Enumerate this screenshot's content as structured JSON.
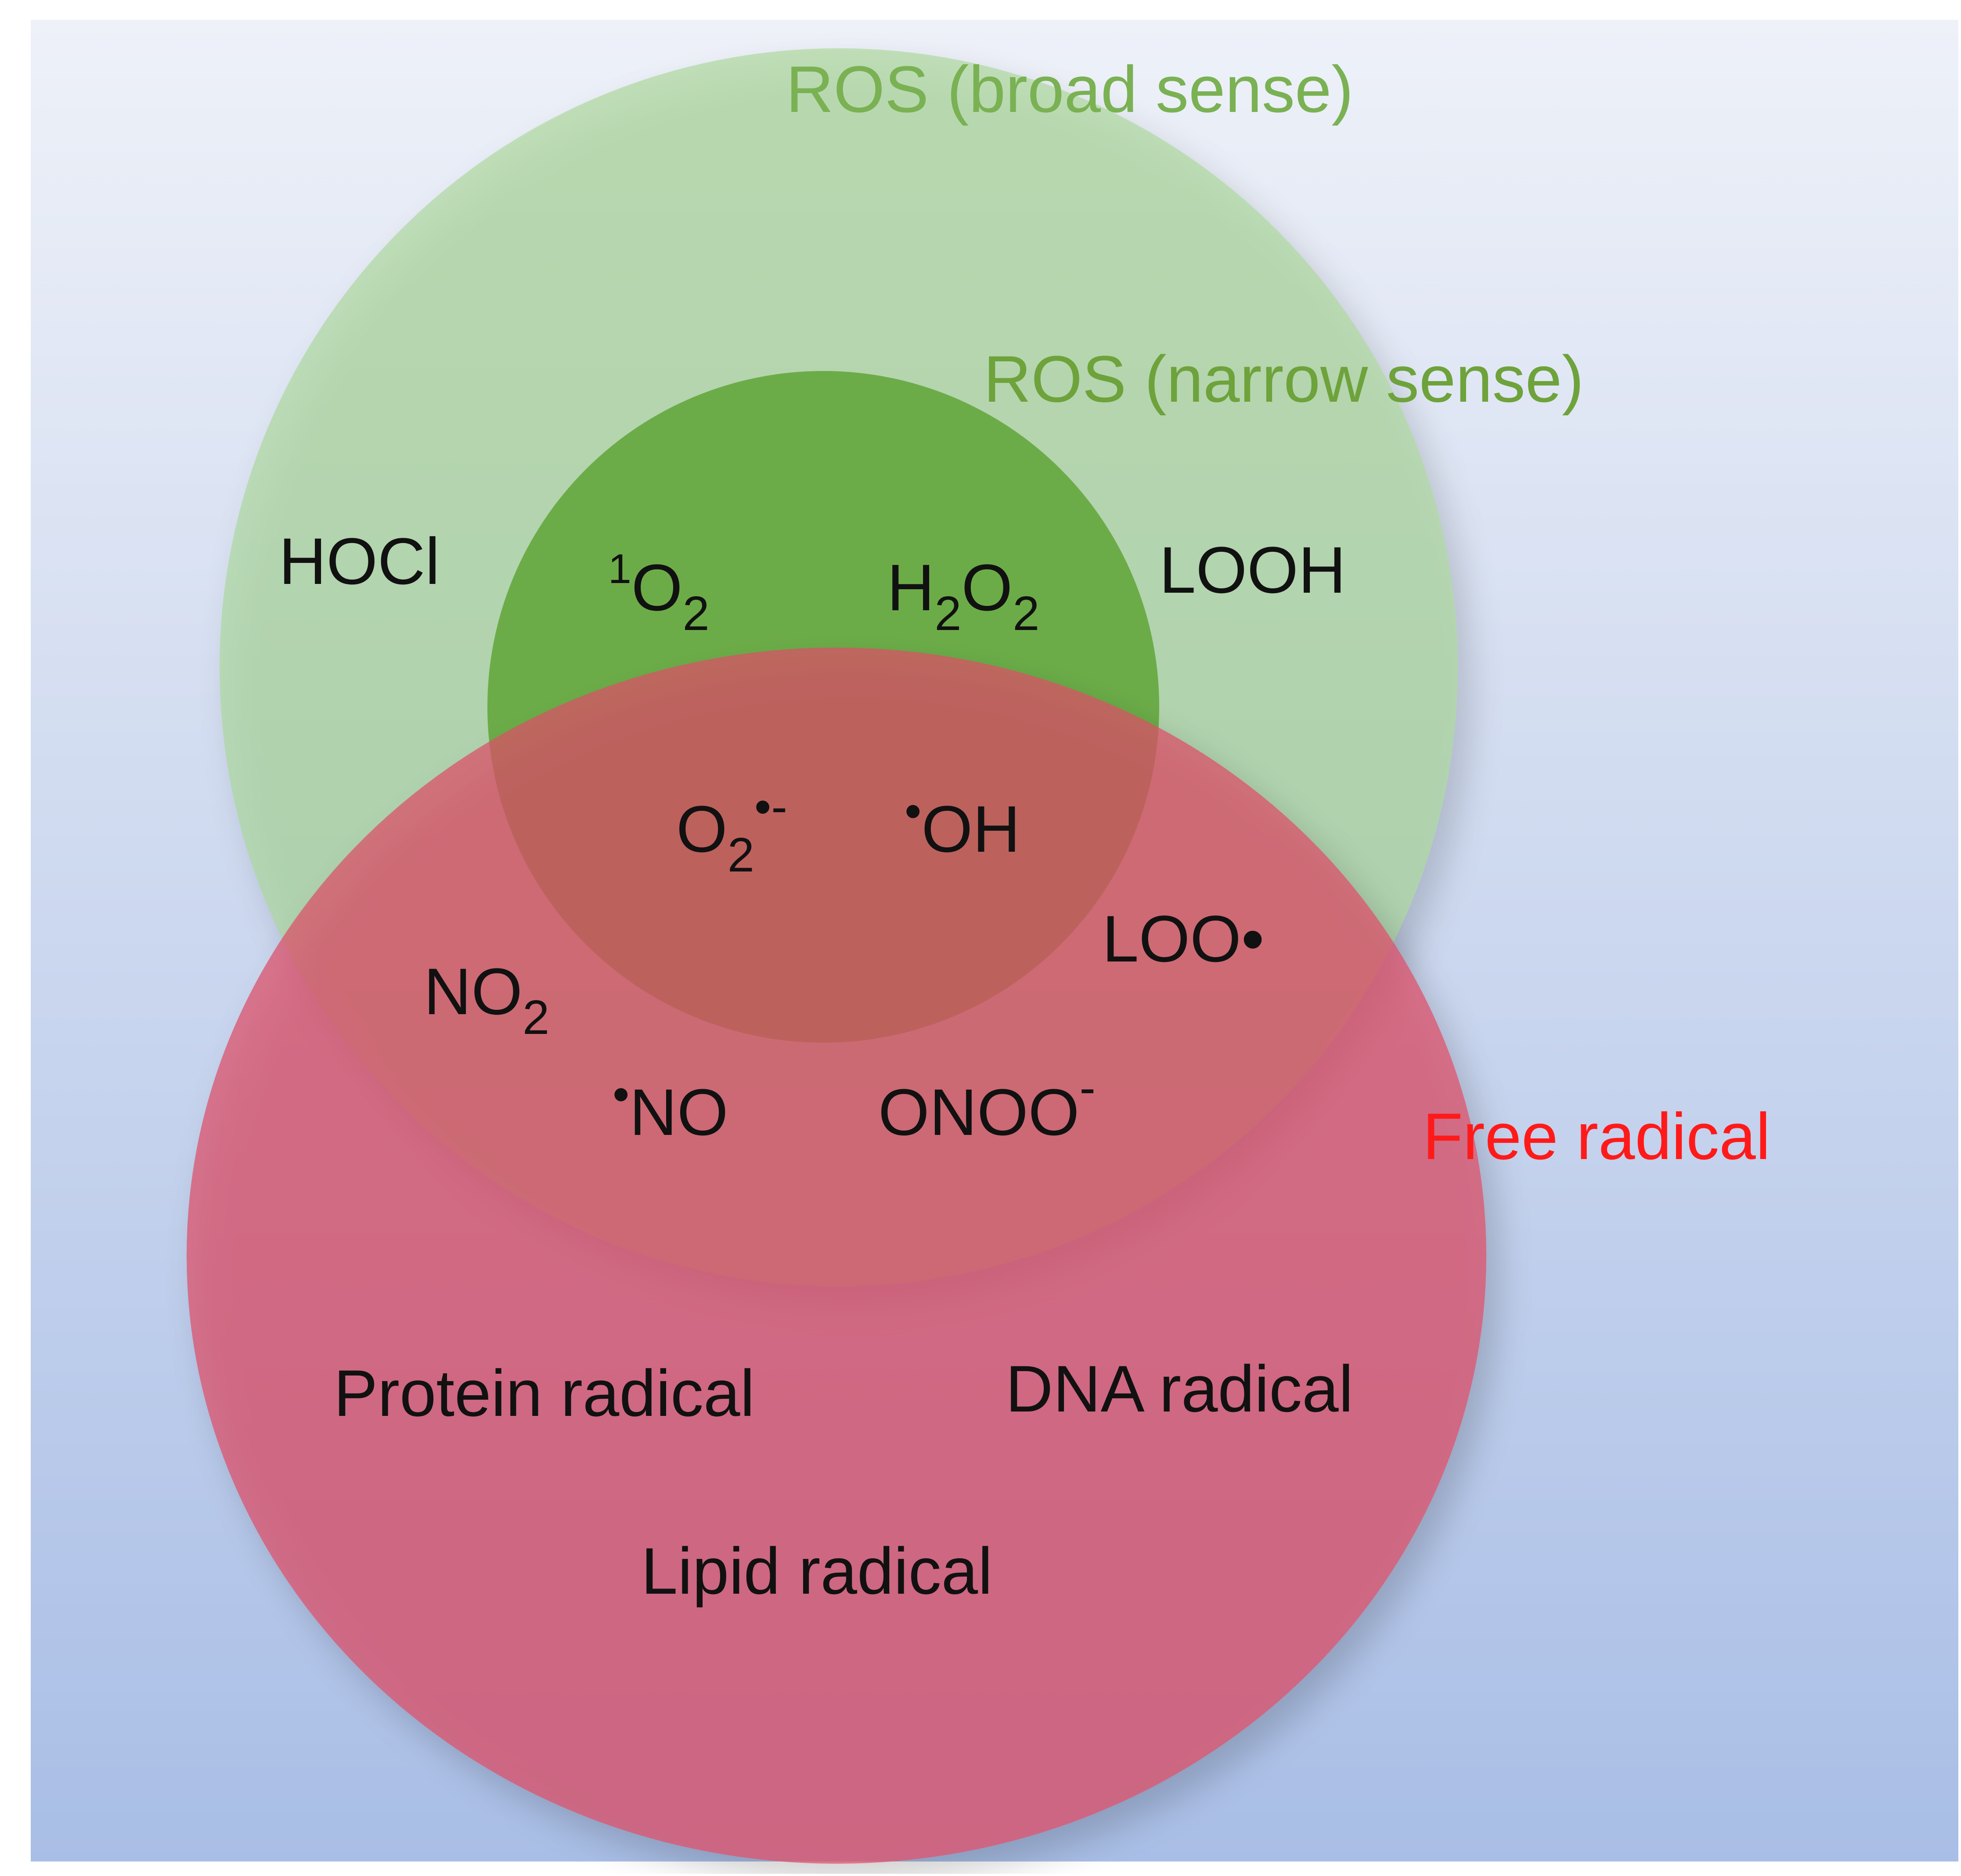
{
  "colors": {
    "bg_top": "#eef1f8",
    "bg_bottom": "#a9bee6",
    "broad_fill": "#a8d596",
    "narrow_fill": "#5fa536",
    "free_fill": "#dd4f68",
    "broad_label": "#7ab153",
    "narrow_label": "#6ea23b",
    "free_label": "#ff1a1a",
    "text": "#111111"
  },
  "sets": {
    "broad": {
      "label": "ROS (broad sense)"
    },
    "narrow": {
      "label": "ROS (narrow sense)"
    },
    "free": {
      "label": "Free radical"
    }
  },
  "species": {
    "hocl": "HOCl",
    "singlet_oxygen": {
      "sup": "1",
      "base": "O",
      "sub": "2"
    },
    "h2o2": {
      "a": "H",
      "sub1": "2",
      "b": "O",
      "sub2": "2"
    },
    "looh": "LOOH",
    "superoxide": {
      "base": "O",
      "sub": "2",
      "sup": "•-"
    },
    "hydroxyl": {
      "dot": "•",
      "base": "OH"
    },
    "loo": "LOO•",
    "no2": {
      "base": "NO",
      "sub": "2"
    },
    "no": {
      "dot": "•",
      "base": "NO"
    },
    "onoo": {
      "base": "ONOO",
      "sup": "-"
    },
    "protein_radical": "Protein radical",
    "dna_radical": "DNA radical",
    "lipid_radical": "Lipid radical"
  }
}
